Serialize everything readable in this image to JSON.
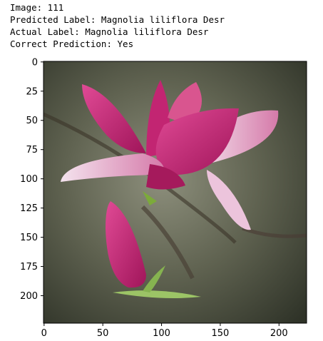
{
  "header": {
    "lines": [
      "Image: 111",
      "Predicted Label: Magnolia liliflora Desr",
      "Actual Label: Magnolia liliflora Desr",
      "Correct Prediction: Yes"
    ]
  },
  "chart_data": {
    "type": "image",
    "xlim": [
      -0.5,
      223.5
    ],
    "ylim": [
      223.5,
      -0.5
    ],
    "xticks": [
      0,
      50,
      100,
      150,
      200
    ],
    "yticks": [
      0,
      25,
      50,
      75,
      100,
      125,
      150,
      175,
      200
    ]
  }
}
